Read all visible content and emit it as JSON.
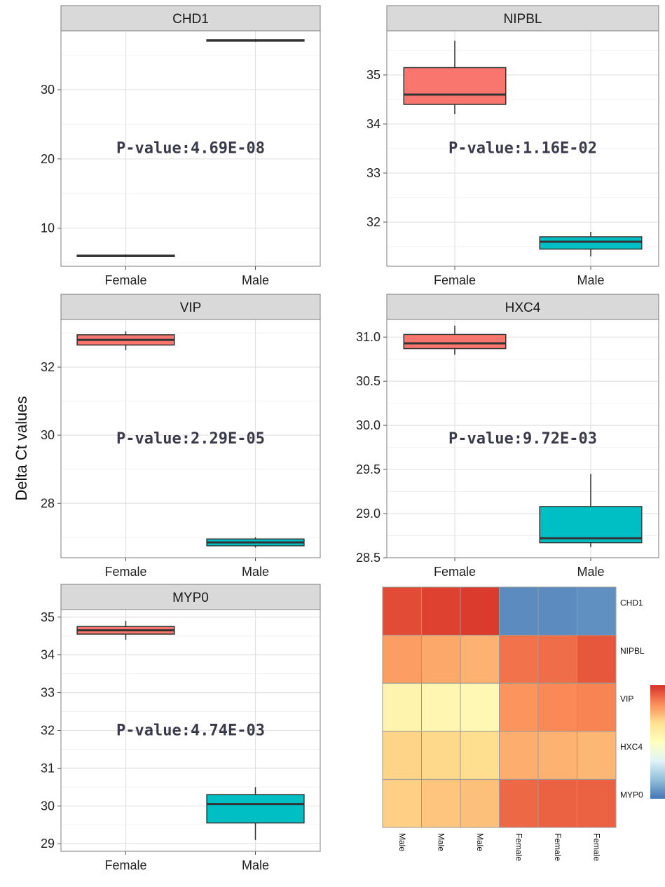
{
  "ylabel": "Delta Ct values",
  "colors": {
    "female": "#f8766d",
    "male": "#00bfc4",
    "strip": "#d9d9d9",
    "panel_border": "#7f7f7f"
  },
  "chart_data": [
    {
      "type": "box",
      "panel": "CHD1",
      "annotation": "P-value:4.69E-08",
      "categories": [
        "Female",
        "Male"
      ],
      "ylim": [
        4.5,
        38.5
      ],
      "yticks": [
        10,
        20,
        30
      ],
      "boxes": [
        {
          "group": "Female",
          "min": 5.8,
          "q1": 5.9,
          "median": 6.0,
          "q3": 6.1,
          "max": 6.2,
          "fill": "#f8766d"
        },
        {
          "group": "Male",
          "min": 36.9,
          "q1": 37.0,
          "median": 37.1,
          "q3": 37.2,
          "max": 37.3,
          "fill": "#00bfc4"
        }
      ]
    },
    {
      "type": "box",
      "panel": "NIPBL",
      "annotation": "P-value:1.16E-02",
      "categories": [
        "Female",
        "Male"
      ],
      "ylim": [
        31.1,
        35.9
      ],
      "yticks": [
        32,
        33,
        34,
        35
      ],
      "boxes": [
        {
          "group": "Female",
          "min": 34.2,
          "q1": 34.4,
          "median": 34.6,
          "q3": 35.15,
          "max": 35.7,
          "fill": "#f8766d"
        },
        {
          "group": "Male",
          "min": 31.3,
          "q1": 31.45,
          "median": 31.6,
          "q3": 31.7,
          "max": 31.8,
          "fill": "#00bfc4"
        }
      ]
    },
    {
      "type": "box",
      "panel": "VIP",
      "annotation": "P-value:2.29E-05",
      "categories": [
        "Female",
        "Male"
      ],
      "ylim": [
        26.4,
        33.4
      ],
      "yticks": [
        28,
        30,
        32
      ],
      "boxes": [
        {
          "group": "Female",
          "min": 32.5,
          "q1": 32.65,
          "median": 32.8,
          "q3": 32.95,
          "max": 33.05,
          "fill": "#f8766d"
        },
        {
          "group": "Male",
          "min": 26.7,
          "q1": 26.75,
          "median": 26.85,
          "q3": 26.95,
          "max": 27.0,
          "fill": "#00bfc4"
        }
      ]
    },
    {
      "type": "box",
      "panel": "HXC4",
      "annotation": "P-value:9.72E-03",
      "categories": [
        "Female",
        "Male"
      ],
      "ylim": [
        28.5,
        31.2
      ],
      "yticks": [
        28.5,
        29.0,
        29.5,
        30.0,
        30.5,
        31.0
      ],
      "ytick_labels": [
        "28.5",
        "29.0",
        "29.5",
        "30.0",
        "30.5",
        "31.0"
      ],
      "boxes": [
        {
          "group": "Female",
          "min": 30.8,
          "q1": 30.87,
          "median": 30.93,
          "q3": 31.03,
          "max": 31.13,
          "fill": "#f8766d"
        },
        {
          "group": "Male",
          "min": 28.62,
          "q1": 28.67,
          "median": 28.72,
          "q3": 29.08,
          "max": 29.45,
          "fill": "#00bfc4"
        }
      ]
    },
    {
      "type": "box",
      "panel": "MYP0",
      "annotation": "P-value:4.74E-03",
      "categories": [
        "Female",
        "Male"
      ],
      "ylim": [
        28.8,
        35.2
      ],
      "yticks": [
        29,
        30,
        31,
        32,
        33,
        34,
        35
      ],
      "boxes": [
        {
          "group": "Female",
          "min": 34.4,
          "q1": 34.55,
          "median": 34.65,
          "q3": 34.75,
          "max": 34.9,
          "fill": "#f8766d"
        },
        {
          "group": "Male",
          "min": 29.1,
          "q1": 29.55,
          "median": 30.05,
          "q3": 30.3,
          "max": 30.5,
          "fill": "#00bfc4"
        }
      ]
    },
    {
      "type": "heatmap",
      "rows": [
        "CHD1",
        "NIPBL",
        "VIP",
        "HXC4",
        "MYP0"
      ],
      "columns": [
        "Male",
        "Male",
        "Male",
        "Female",
        "Female",
        "Female"
      ],
      "values": [
        [
          0.95,
          0.97,
          0.98,
          0.05,
          0.05,
          0.06
        ],
        [
          0.8,
          0.78,
          0.76,
          0.88,
          0.89,
          0.93
        ],
        [
          0.56,
          0.55,
          0.54,
          0.82,
          0.84,
          0.85
        ],
        [
          0.69,
          0.68,
          0.67,
          0.77,
          0.76,
          0.75
        ],
        [
          0.7,
          0.72,
          0.73,
          0.9,
          0.91,
          0.91
        ]
      ],
      "colorbar": [
        "#4575b4",
        "#91bfdb",
        "#e0f3f8",
        "#ffffbf",
        "#fee090",
        "#fc8d59",
        "#d73027"
      ]
    }
  ]
}
